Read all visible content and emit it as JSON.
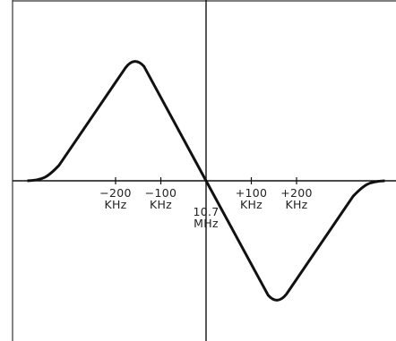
{
  "chart_data": {
    "type": "line",
    "title": "",
    "xlabel": "",
    "ylabel": "",
    "xlim": [
      -460,
      390
    ],
    "ylim": [
      -1.0,
      1.0
    ],
    "grid": false,
    "center_label": [
      "10.7",
      "MHz"
    ],
    "x_ticks": [
      {
        "x": -200,
        "label": [
          "−200",
          "KHz"
        ]
      },
      {
        "x": -100,
        "label": [
          "−100",
          "KHz"
        ]
      },
      {
        "x": 100,
        "label": [
          "+100",
          "KHz"
        ]
      },
      {
        "x": 200,
        "label": [
          "+200",
          "KHz"
        ]
      }
    ],
    "series": [
      {
        "values": [
          {
            "x": -395,
            "y": 0
          },
          {
            "x": -340,
            "y": 0.07
          },
          {
            "x": -163,
            "y": 1.0
          },
          {
            "x": -135,
            "y": 0.98
          },
          {
            "x": 0,
            "y": 0
          },
          {
            "x": 135,
            "y": -0.98
          },
          {
            "x": 163,
            "y": -1.0
          },
          {
            "x": 340,
            "y": -0.07
          },
          {
            "x": 395,
            "y": 0
          }
        ]
      }
    ]
  }
}
